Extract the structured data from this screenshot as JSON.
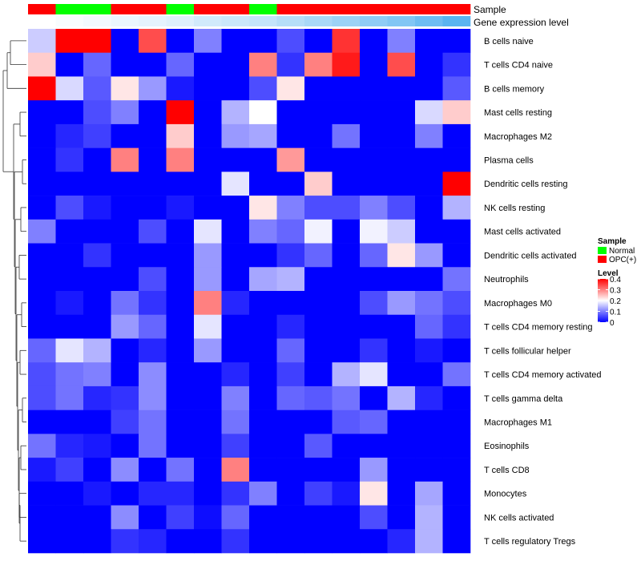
{
  "chart_data": {
    "type": "heatmap",
    "annotation_labels": {
      "sample": "Sample",
      "gene_expression": "Gene expression level"
    },
    "columns": {
      "sample": [
        "OPC(+)",
        "Normal",
        "Normal",
        "OPC(+)",
        "OPC(+)",
        "Normal",
        "OPC(+)",
        "OPC(+)",
        "Normal",
        "OPC(+)",
        "OPC(+)",
        "OPC(+)",
        "OPC(+)",
        "OPC(+)",
        "OPC(+)",
        "OPC(+)"
      ],
      "gene_expression_level": [
        0.0,
        0.02,
        0.04,
        0.06,
        0.08,
        0.1,
        0.14,
        0.16,
        0.18,
        0.22,
        0.26,
        0.3,
        0.34,
        0.38,
        0.44,
        0.5
      ]
    },
    "rows": [
      "B cells naive",
      "T cells CD4 naive",
      "B cells memory",
      "Mast cells resting",
      "Macrophages M2",
      "Plasma cells",
      "Dendritic cells resting",
      "NK cells resting",
      "Mast cells activated",
      "Dendritic cells activated",
      "Neutrophils",
      "Macrophages M0",
      "T cells CD4 memory resting",
      "T cells follicular helper",
      "T cells CD4 memory activated",
      "T cells gamma delta",
      "Macrophages M1",
      "Eosinophils",
      "T cells CD8",
      "Monocytes",
      "NK cells activated",
      "T cells regulatory  Tregs"
    ],
    "values": [
      [
        0.16,
        0.4,
        0.4,
        0.0,
        0.34,
        0.0,
        0.1,
        0.0,
        0.0,
        0.06,
        0.0,
        0.36,
        0.0,
        0.1,
        0.0,
        0.0
      ],
      [
        0.24,
        0.0,
        0.08,
        0.0,
        0.0,
        0.08,
        0.0,
        0.0,
        0.3,
        0.04,
        0.3,
        0.38,
        0.0,
        0.34,
        0.0,
        0.04
      ],
      [
        0.4,
        0.17,
        0.07,
        0.22,
        0.12,
        0.02,
        0.0,
        0.0,
        0.06,
        0.22,
        0.0,
        0.0,
        0.0,
        0.0,
        0.0,
        0.07
      ],
      [
        0.0,
        0.0,
        0.06,
        0.1,
        0.0,
        0.4,
        0.0,
        0.14,
        0.2,
        0.0,
        0.0,
        0.0,
        0.0,
        0.0,
        0.17,
        0.24
      ],
      [
        0.0,
        0.03,
        0.05,
        0.0,
        0.0,
        0.24,
        0.0,
        0.12,
        0.13,
        0.0,
        0.0,
        0.09,
        0.0,
        0.0,
        0.1,
        0.0
      ],
      [
        0.0,
        0.04,
        0.0,
        0.3,
        0.0,
        0.3,
        0.0,
        0.0,
        0.0,
        0.28,
        0.0,
        0.0,
        0.0,
        0.0,
        0.0,
        0.0
      ],
      [
        0.0,
        0.0,
        0.0,
        0.0,
        0.0,
        0.0,
        0.0,
        0.18,
        0.0,
        0.0,
        0.24,
        0.0,
        0.0,
        0.0,
        0.0,
        0.4
      ],
      [
        0.0,
        0.06,
        0.02,
        0.0,
        0.0,
        0.02,
        0.0,
        0.0,
        0.22,
        0.1,
        0.06,
        0.06,
        0.1,
        0.06,
        0.0,
        0.14
      ],
      [
        0.1,
        0.0,
        0.0,
        0.0,
        0.06,
        0.0,
        0.18,
        0.0,
        0.1,
        0.08,
        0.19,
        0.0,
        0.19,
        0.16,
        0.0,
        0.0
      ],
      [
        0.0,
        0.0,
        0.04,
        0.0,
        0.0,
        0.0,
        0.12,
        0.0,
        0.0,
        0.04,
        0.08,
        0.0,
        0.08,
        0.22,
        0.12,
        0.0
      ],
      [
        0.0,
        0.0,
        0.0,
        0.0,
        0.06,
        0.0,
        0.12,
        0.0,
        0.13,
        0.14,
        0.0,
        0.0,
        0.0,
        0.0,
        0.0,
        0.09
      ],
      [
        0.0,
        0.02,
        0.0,
        0.09,
        0.04,
        0.0,
        0.3,
        0.03,
        0.0,
        0.0,
        0.0,
        0.0,
        0.06,
        0.12,
        0.09,
        0.06
      ],
      [
        0.0,
        0.0,
        0.0,
        0.12,
        0.08,
        0.0,
        0.18,
        0.0,
        0.0,
        0.03,
        0.0,
        0.0,
        0.0,
        0.0,
        0.08,
        0.04
      ],
      [
        0.08,
        0.18,
        0.14,
        0.0,
        0.03,
        0.0,
        0.12,
        0.0,
        0.0,
        0.08,
        0.0,
        0.0,
        0.04,
        0.0,
        0.02,
        0.0
      ],
      [
        0.06,
        0.09,
        0.1,
        0.0,
        0.11,
        0.0,
        0.0,
        0.03,
        0.0,
        0.05,
        0.0,
        0.14,
        0.18,
        0.0,
        0.0,
        0.09
      ],
      [
        0.06,
        0.09,
        0.03,
        0.04,
        0.11,
        0.0,
        0.0,
        0.1,
        0.0,
        0.08,
        0.07,
        0.09,
        0.0,
        0.14,
        0.03,
        0.0
      ],
      [
        0.0,
        0.0,
        0.0,
        0.05,
        0.09,
        0.0,
        0.0,
        0.09,
        0.0,
        0.0,
        0.0,
        0.07,
        0.08,
        0.0,
        0.0,
        0.0
      ],
      [
        0.09,
        0.03,
        0.02,
        0.0,
        0.09,
        0.0,
        0.0,
        0.05,
        0.0,
        0.0,
        0.07,
        0.0,
        0.0,
        0.0,
        0.0,
        0.0
      ],
      [
        0.02,
        0.05,
        0.0,
        0.11,
        0.0,
        0.09,
        0.0,
        0.3,
        0.0,
        0.0,
        0.0,
        0.0,
        0.12,
        0.0,
        0.0,
        0.0
      ],
      [
        0.0,
        0.0,
        0.02,
        0.0,
        0.03,
        0.03,
        0.0,
        0.04,
        0.1,
        0.0,
        0.05,
        0.02,
        0.22,
        0.0,
        0.13,
        0.0
      ],
      [
        0.0,
        0.0,
        0.0,
        0.11,
        0.0,
        0.05,
        0.01,
        0.08,
        0.0,
        0.0,
        0.0,
        0.0,
        0.06,
        0.0,
        0.14,
        0.0
      ],
      [
        0.0,
        0.0,
        0.0,
        0.04,
        0.03,
        0.0,
        0.0,
        0.04,
        0.0,
        0.0,
        0.0,
        0.0,
        0.0,
        0.03,
        0.14,
        0.0
      ]
    ],
    "colors": {
      "normal": "#00ff00",
      "opc": "#ff0000",
      "low": "#0000ff",
      "mid": "#ffffff",
      "high": "#ff0000",
      "gene_low": "#ffffff",
      "gene_high": "#5ab4f0",
      "dendrogram": "#333333"
    },
    "legend": {
      "sample_title": "Sample",
      "sample_items": [
        {
          "label": "Normal",
          "key": "normal"
        },
        {
          "label": "OPC(+)",
          "key": "opc"
        }
      ],
      "level_title": "Level",
      "level_ticks": [
        "0.4",
        "0.3",
        "0.2",
        "0.1",
        "0"
      ],
      "level_range": [
        0,
        0.4
      ],
      "position": "right"
    },
    "dendrogram": {
      "order_pairs": [
        [
          0,
          1
        ],
        [
          2,
          "a"
        ],
        [
          4,
          5
        ],
        [
          6,
          7
        ],
        [
          8,
          9
        ],
        [
          10,
          11
        ],
        [
          12,
          13
        ],
        [
          14,
          15
        ],
        [
          16,
          17
        ],
        [
          19,
          20
        ],
        [
          18,
          "b"
        ],
        [
          21,
          "c"
        ]
      ]
    }
  }
}
